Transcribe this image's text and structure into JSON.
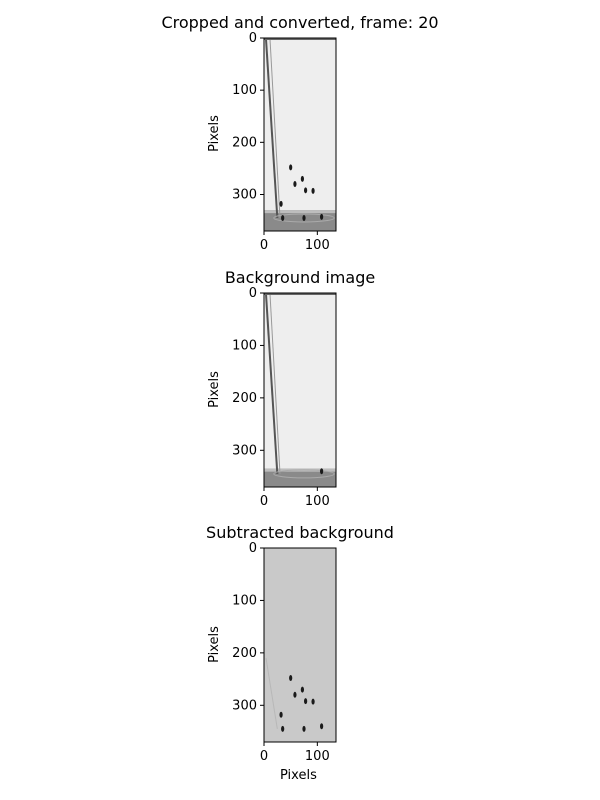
{
  "chart_data": [
    {
      "type": "image",
      "title": "Cropped and converted, frame: 20",
      "xlabel": "",
      "ylabel": "Pixels",
      "xticks": [
        "0",
        "100"
      ],
      "yticks": [
        "0",
        "100",
        "200",
        "300"
      ],
      "xlim": [
        0,
        135
      ],
      "ylim": [
        370,
        0
      ],
      "background": "light-grey glass with bottom dark band",
      "objects": [
        {
          "x": 50,
          "y": 248
        },
        {
          "x": 58,
          "y": 280
        },
        {
          "x": 72,
          "y": 270
        },
        {
          "x": 78,
          "y": 292
        },
        {
          "x": 92,
          "y": 293
        },
        {
          "x": 32,
          "y": 318
        },
        {
          "x": 35,
          "y": 345
        },
        {
          "x": 75,
          "y": 345
        },
        {
          "x": 108,
          "y": 343
        }
      ]
    },
    {
      "type": "image",
      "title": "Background image",
      "xlabel": "",
      "ylabel": "Pixels",
      "xticks": [
        "0",
        "100"
      ],
      "yticks": [
        "0",
        "100",
        "200",
        "300"
      ],
      "xlim": [
        0,
        135
      ],
      "ylim": [
        370,
        0
      ],
      "background": "light-grey glass with bottom dark band",
      "objects": [
        {
          "x": 108,
          "y": 340
        }
      ]
    },
    {
      "type": "image",
      "title": "Subtracted background",
      "xlabel": "Pixels",
      "ylabel": "Pixels",
      "xticks": [
        "0",
        "100"
      ],
      "yticks": [
        "0",
        "100",
        "200",
        "300"
      ],
      "xlim": [
        0,
        135
      ],
      "ylim": [
        370,
        0
      ],
      "background": "uniform mid grey",
      "objects": [
        {
          "x": 50,
          "y": 248
        },
        {
          "x": 58,
          "y": 280
        },
        {
          "x": 72,
          "y": 270
        },
        {
          "x": 78,
          "y": 292
        },
        {
          "x": 92,
          "y": 293
        },
        {
          "x": 32,
          "y": 318
        },
        {
          "x": 35,
          "y": 345
        },
        {
          "x": 75,
          "y": 345
        },
        {
          "x": 108,
          "y": 340
        }
      ]
    }
  ],
  "colors": {
    "glass_light": "#eeeeee",
    "glass_edge": "#555555",
    "bottom_band": "#8a8a8a",
    "subtracted_bg": "#c9c9c9",
    "object": "#1a1a1a"
  }
}
